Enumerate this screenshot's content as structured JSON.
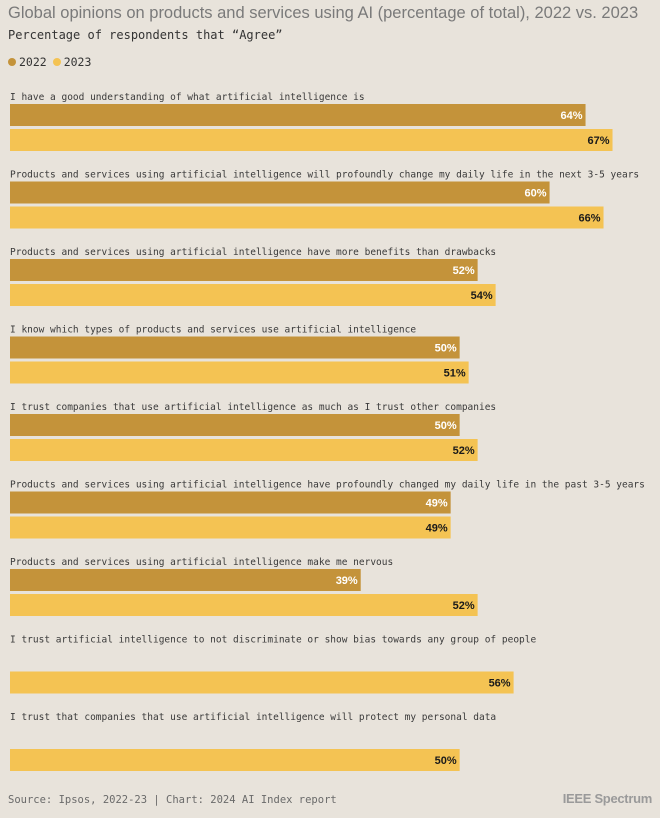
{
  "header": {
    "title": "Global opinions on products and services using AI (percentage of total), 2022 vs. 2023",
    "subtitle": "Percentage of respondents that “Agree”"
  },
  "legend": [
    {
      "label": "2022",
      "color": "#c4933a"
    },
    {
      "label": "2023",
      "color": "#f4c353"
    }
  ],
  "footer": {
    "source": "Source: Ipsos, 2022-23 | Chart: 2024 AI Index report",
    "brand": "IEEE Spectrum"
  },
  "chart_data": {
    "type": "bar",
    "orientation": "horizontal",
    "xlim": [
      0,
      70
    ],
    "categories": [
      "I have a good understanding of what artificial intelligence is",
      "Products and services using artificial intelligence will profoundly change my daily life in the next 3-5 years",
      "Products and services using artificial intelligence have more benefits than drawbacks",
      "I know which types of products and services use artificial intelligence",
      "I trust companies that use artificial intelligence as much as I trust other companies",
      "Products and services using artificial intelligence have profoundly changed my daily life in the past 3-5 years",
      "Products and services using artificial intelligence make me nervous",
      "I trust artificial intelligence to not discriminate or show bias towards any group of people",
      "I trust that companies that use artificial intelligence will protect my personal data"
    ],
    "series": [
      {
        "name": "2022",
        "color": "#c4933a",
        "label_color": "#ffffff",
        "values": [
          64,
          60,
          52,
          50,
          50,
          49,
          39,
          null,
          null
        ]
      },
      {
        "name": "2023",
        "color": "#f4c353",
        "label_color": "#1a1a1a",
        "values": [
          67,
          66,
          54,
          51,
          52,
          49,
          52,
          56,
          50
        ]
      }
    ],
    "value_suffix": "%",
    "grid": false,
    "legend_position": "top-left"
  }
}
